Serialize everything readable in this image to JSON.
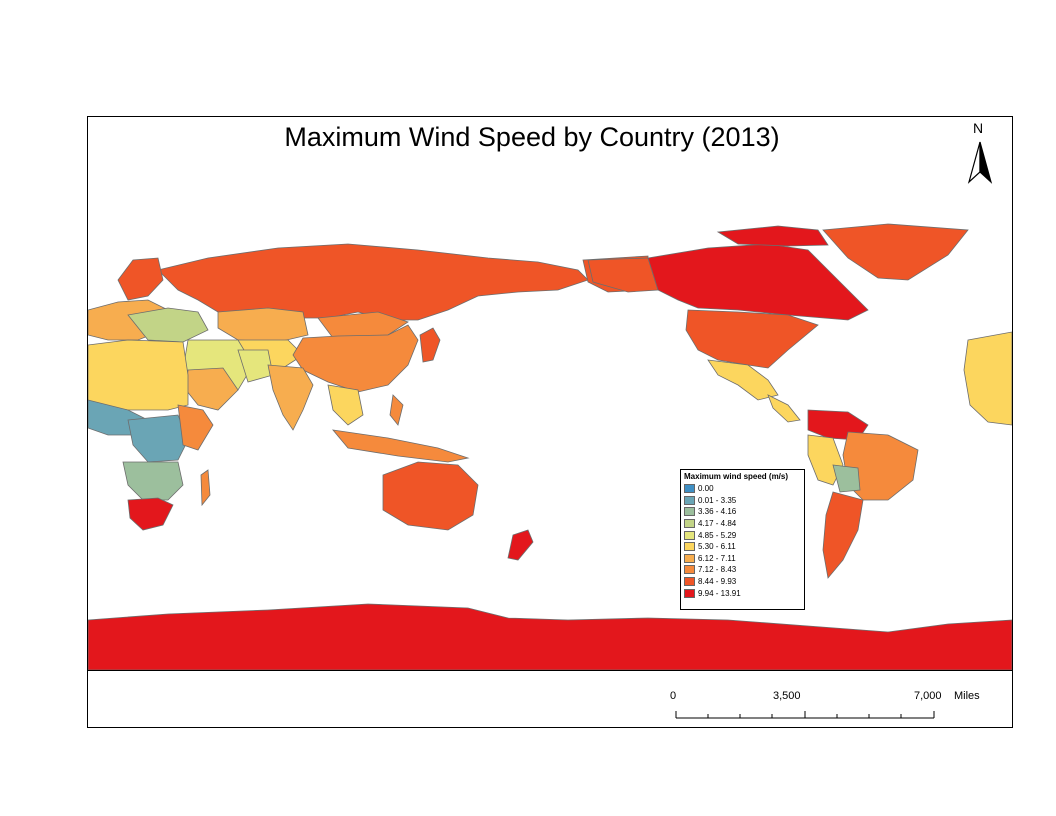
{
  "title": "Maximum Wind Speed by Country (2013)",
  "north_arrow": {
    "label": "N"
  },
  "colors": {
    "c0": "#3f8fc4",
    "c1": "#6aa5b5",
    "c2": "#9cbf9d",
    "c3": "#c2d487",
    "c4": "#e5e67c",
    "c5": "#fcd65e",
    "c6": "#f7ad4f",
    "c7": "#f58a3c",
    "c8": "#ef5527",
    "c9": "#e3171c",
    "land_outline": "#6d6d6d"
  },
  "legend": {
    "title": "Maximum wind speed (m/s)",
    "items": [
      {
        "label": "0.00",
        "color": "#3f8fc4"
      },
      {
        "label": "0.01 - 3.35",
        "color": "#6aa5b5"
      },
      {
        "label": "3.36 - 4.16",
        "color": "#9cbf9d"
      },
      {
        "label": "4.17 - 4.84",
        "color": "#c2d487"
      },
      {
        "label": "4.85 - 5.29",
        "color": "#e5e67c"
      },
      {
        "label": "5.30 - 6.11",
        "color": "#fcd65e"
      },
      {
        "label": "6.12 - 7.11",
        "color": "#f7ad4f"
      },
      {
        "label": "7.12 - 8.43",
        "color": "#f58a3c"
      },
      {
        "label": "8.44 - 9.93",
        "color": "#ef5527"
      },
      {
        "label": "9.94 - 13.91",
        "color": "#e3171c"
      }
    ]
  },
  "scale_bar": {
    "labels": [
      "0",
      "3,500",
      "7,000"
    ],
    "unit": "Miles"
  }
}
